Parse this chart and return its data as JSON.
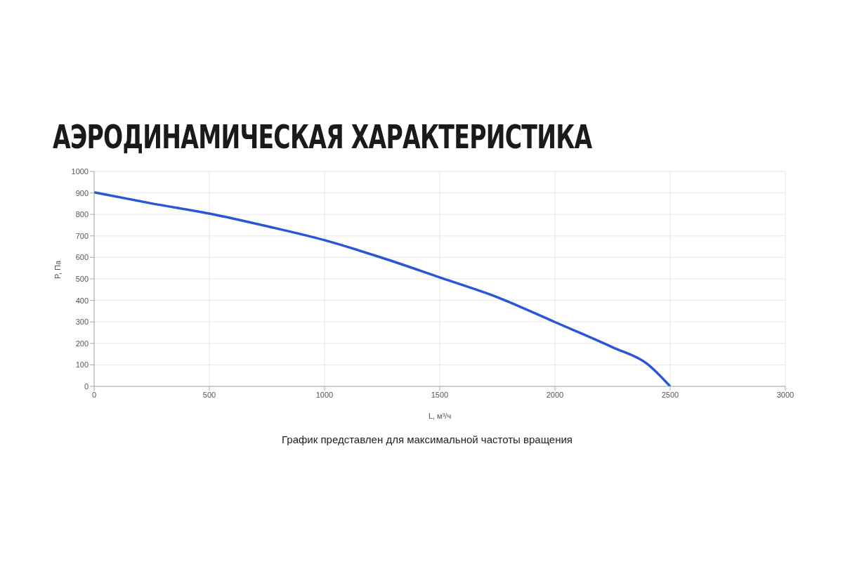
{
  "chart_data": {
    "type": "line",
    "title": "АЭРОДИНАМИЧЕСКАЯ ХАРАКТЕРИСТИКА",
    "xlabel": "L, м³/ч",
    "ylabel": "P, Па",
    "annotations": [
      "График представлен для максимальной частоты вращения"
    ],
    "x": [
      0,
      250,
      500,
      750,
      1000,
      1250,
      1500,
      1750,
      2000,
      2250,
      2400,
      2500
    ],
    "series": [
      {
        "color": "#2a56d8",
        "values": [
          903,
          851,
          804,
          745,
          680,
          598,
          507,
          415,
          299,
          182,
          105,
          0
        ]
      }
    ],
    "xlim": [
      0,
      3000
    ],
    "xticks": [
      0,
      500,
      1000,
      1500,
      2000,
      2500,
      3000
    ],
    "ylim": [
      0,
      1000
    ],
    "yticks": [
      0,
      100,
      200,
      300,
      400,
      500,
      600,
      700,
      800,
      900,
      1000
    ],
    "grid": true,
    "legend": false,
    "marker": "none",
    "line_style": "solid"
  }
}
